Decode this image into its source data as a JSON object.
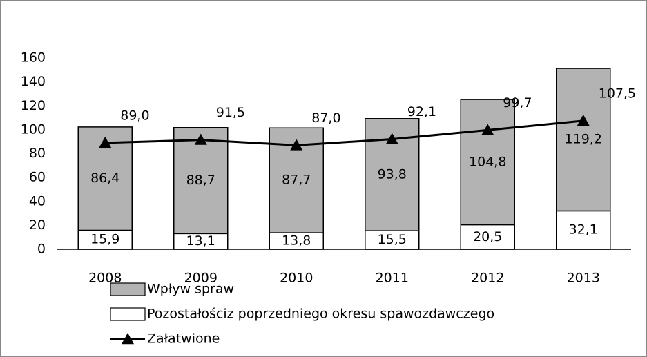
{
  "chart_data": {
    "type": "bar",
    "stacked": true,
    "categories": [
      "2008",
      "2009",
      "2010",
      "2011",
      "2012",
      "2013"
    ],
    "series": [
      {
        "name": "Pozostałościz poprzedniego okresu spawozdawczego",
        "type": "bar",
        "color": "#ffffff",
        "values": [
          15.9,
          13.1,
          13.8,
          15.5,
          20.5,
          32.1
        ],
        "value_labels": [
          "15,9",
          "13,1",
          "13,8",
          "15,5",
          "20,5",
          "32,1"
        ]
      },
      {
        "name": "Wpływ spraw",
        "type": "bar",
        "color": "#b3b3b3",
        "values": [
          86.4,
          88.7,
          87.7,
          93.8,
          104.8,
          119.2
        ],
        "value_labels": [
          "86,4",
          "88,7",
          "87,7",
          "93,8",
          "104,8",
          "119,2"
        ]
      },
      {
        "name": "Załatwione",
        "type": "line",
        "color": "#000000",
        "values": [
          89.0,
          91.5,
          87.0,
          92.1,
          99.7,
          107.5
        ],
        "value_labels": [
          "89,0",
          "91,5",
          "87,0",
          "92,1",
          "99,7",
          "107,5"
        ]
      }
    ],
    "ylim": [
      0,
      160
    ],
    "yticks": [
      0,
      20,
      40,
      60,
      80,
      100,
      120,
      140,
      160
    ],
    "grid": false
  }
}
